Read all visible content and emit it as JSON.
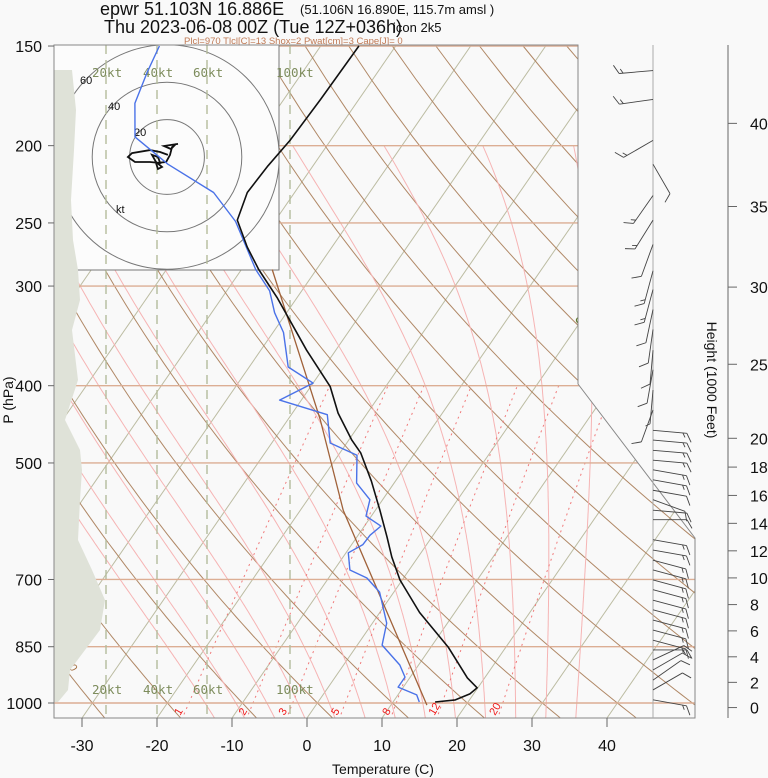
{
  "header": {
    "station": "epwr 51.103N 16.886E",
    "coords": "(51.106N 16.890E, 115.7m amsl )",
    "time": "Thu 2023-06-08 00Z (Tue 12Z+036h)",
    "model": "icon 2k5",
    "indices": "Plcl=970 Tlcl[C]=13 Shox=2 Pwat[cm]=3 Cape[J]= 0"
  },
  "colors": {
    "temperature": "#111111",
    "dewpoint": "#4a72e8",
    "parcel": "#a0623a",
    "isobar": "#dcae94",
    "dry_adiabat": "#b08866",
    "isotherm": "#bcbca2",
    "moist_adiabat": "#f6b4b4",
    "mixing_ratio": "#f07a7a",
    "wind_scale": "#b4bc9c",
    "shade": "#dfe2d8"
  },
  "chart_data": {
    "type": "line",
    "title": "epwr 51.103N 16.886E",
    "xlabel": "Temperature (C)",
    "ylabel": "P (hPa)",
    "y2label": "Height (1000 Feet)",
    "xlim": [
      -33,
      45
    ],
    "ylim": [
      1044,
      150
    ],
    "x_ticks": [
      -30,
      -20,
      -10,
      0,
      10,
      20,
      30,
      40
    ],
    "x_tick_labels": [
      "-30",
      "-20",
      "-10",
      "0",
      "10",
      "20",
      "30",
      "40"
    ],
    "y_ticks": [
      150,
      200,
      250,
      300,
      400,
      500,
      700,
      850,
      1000
    ],
    "y_tick_labels": [
      "150",
      "200",
      "250",
      "300",
      "400",
      "500",
      "700",
      "850",
      "1000"
    ],
    "y2_ticks_kft": [
      40,
      35,
      30,
      25,
      20,
      18,
      16,
      14,
      12,
      10,
      8,
      6,
      4,
      2,
      0
    ],
    "y2_tick_labels": [
      "40",
      "35",
      "30",
      "25",
      "20",
      "18",
      "16",
      "14",
      "12",
      "10",
      "8",
      "6",
      "4",
      "2",
      "0"
    ],
    "grid": true,
    "series": [
      {
        "name": "temperature",
        "points": [
          [
            997,
            15.6
          ],
          [
            991,
            18.1
          ],
          [
            974,
            19.5
          ],
          [
            957,
            19.9
          ],
          [
            930,
            17.7
          ],
          [
            851,
            12.3
          ],
          [
            770,
            5.3
          ],
          [
            701,
            -0.3
          ],
          [
            656,
            -3.5
          ],
          [
            619,
            -6.0
          ],
          [
            573,
            -9.4
          ],
          [
            527,
            -13.2
          ],
          [
            486,
            -17.2
          ],
          [
            468,
            -19.6
          ],
          [
            433,
            -23.9
          ],
          [
            401,
            -27.4
          ],
          [
            361,
            -33.9
          ],
          [
            310,
            -42.7
          ],
          [
            286,
            -47.7
          ],
          [
            268,
            -51.3
          ],
          [
            248,
            -55.1
          ],
          [
            229,
            -56.3
          ],
          [
            212,
            -56.0
          ],
          [
            197,
            -55.4
          ],
          [
            175,
            -55.1
          ],
          [
            150,
            -54.9
          ]
        ]
      },
      {
        "name": "dewpoint",
        "points": [
          [
            997,
            13.5
          ],
          [
            977,
            12.5
          ],
          [
            955,
            9.3
          ],
          [
            928,
            9.3
          ],
          [
            896,
            7.5
          ],
          [
            846,
            3.3
          ],
          [
            794,
            1.9
          ],
          [
            726,
            -1.9
          ],
          [
            697,
            -4.9
          ],
          [
            681,
            -7.9
          ],
          [
            648,
            -9.7
          ],
          [
            633,
            -8.5
          ],
          [
            616,
            -8.4
          ],
          [
            600,
            -7.8
          ],
          [
            583,
            -10.7
          ],
          [
            556,
            -11.7
          ],
          [
            530,
            -15.0
          ],
          [
            489,
            -17.5
          ],
          [
            472,
            -22.2
          ],
          [
            435,
            -25.2
          ],
          [
            417,
            -32.9
          ],
          [
            397,
            -30.0
          ],
          [
            379,
            -34.8
          ],
          [
            343,
            -38.6
          ],
          [
            324,
            -41.6
          ],
          [
            304,
            -44.3
          ],
          [
            286,
            -48.1
          ],
          [
            249,
            -55.2
          ],
          [
            229,
            -60.8
          ],
          [
            211,
            -69.5
          ],
          [
            195,
            -76.4
          ],
          [
            177,
            -79.5
          ],
          [
            162,
            -80.7
          ],
          [
            150,
            -81.5
          ]
        ]
      },
      {
        "name": "parcel",
        "points": [
          [
            1006,
            14.8
          ],
          [
            573,
            -14.3
          ],
          [
            441,
            -25.7
          ],
          [
            286,
            -45.9
          ]
        ]
      }
    ],
    "dry_adiabat_labels": [
      "30",
      "20",
      "10",
      "0",
      "-10",
      "-20",
      "-30"
    ],
    "isotherm_labels": [
      "-20",
      "-10",
      "0",
      "10",
      "20",
      "30"
    ],
    "mixing_ratio_lines": [
      1,
      2,
      3,
      5,
      8,
      12,
      20
    ],
    "mixing_ratio_labels": [
      "1",
      "2",
      "3",
      "5",
      "8",
      "12",
      "20"
    ],
    "wind_speed_scale_labels": [
      "20kt",
      "40kt",
      "60kt",
      "100kt"
    ],
    "wind_barbs": [
      [
        161,
        265,
        15
      ],
      [
        175,
        262,
        15
      ],
      [
        197,
        240,
        15
      ],
      [
        211,
        150,
        10
      ],
      [
        231,
        215,
        15
      ],
      [
        248,
        212,
        15
      ],
      [
        266,
        200,
        10
      ],
      [
        287,
        195,
        15
      ],
      [
        303,
        195,
        15
      ],
      [
        321,
        192,
        10
      ],
      [
        340,
        188,
        10
      ],
      [
        361,
        185,
        10
      ],
      [
        382,
        190,
        10
      ],
      [
        405,
        185,
        5
      ],
      [
        429,
        200,
        10
      ],
      [
        455,
        95,
        15
      ],
      [
        468,
        95,
        15
      ],
      [
        482,
        95,
        15
      ],
      [
        496,
        95,
        15
      ],
      [
        510,
        100,
        15
      ],
      [
        525,
        100,
        15
      ],
      [
        541,
        100,
        10
      ],
      [
        556,
        110,
        10
      ],
      [
        573,
        95,
        10
      ],
      [
        589,
        90,
        10
      ],
      [
        624,
        100,
        15
      ],
      [
        643,
        100,
        15
      ],
      [
        662,
        105,
        15
      ],
      [
        681,
        105,
        15
      ],
      [
        701,
        105,
        15
      ],
      [
        721,
        105,
        15
      ],
      [
        743,
        105,
        15
      ],
      [
        764,
        105,
        15
      ],
      [
        787,
        105,
        15
      ],
      [
        810,
        105,
        15
      ],
      [
        834,
        105,
        15
      ],
      [
        858,
        90,
        15
      ],
      [
        883,
        65,
        10
      ],
      [
        909,
        60,
        10
      ],
      [
        936,
        55,
        10
      ],
      [
        963,
        60,
        10
      ],
      [
        991,
        100,
        15
      ]
    ],
    "hodograph": {
      "ring_labels": [
        "20",
        "40",
        "60"
      ],
      "unit": "kt",
      "points": [
        [
          0.5,
          1.1
        ],
        [
          -3.7,
          2.7
        ],
        [
          -9.1,
          3.7
        ],
        [
          -18.7,
          2.1
        ],
        [
          -20.9,
          0
        ],
        [
          -17.1,
          -2.7
        ],
        [
          -9.1,
          -2.7
        ],
        [
          -3.7,
          -3.2
        ],
        [
          -4.8,
          0
        ],
        [
          -8,
          1.1
        ],
        [
          -5.9,
          -2.7
        ],
        [
          -2.7,
          -5.3
        ],
        [
          -4.8,
          -6.4
        ],
        [
          -5.9,
          -3.2
        ],
        [
          -0.5,
          -2.7
        ],
        [
          1.6,
          1.1
        ],
        [
          2.7,
          5.3
        ],
        [
          4.8,
          7
        ],
        [
          2.1,
          4.3
        ],
        [
          -1.6,
          5.9
        ],
        [
          5.9,
          7
        ]
      ]
    }
  }
}
